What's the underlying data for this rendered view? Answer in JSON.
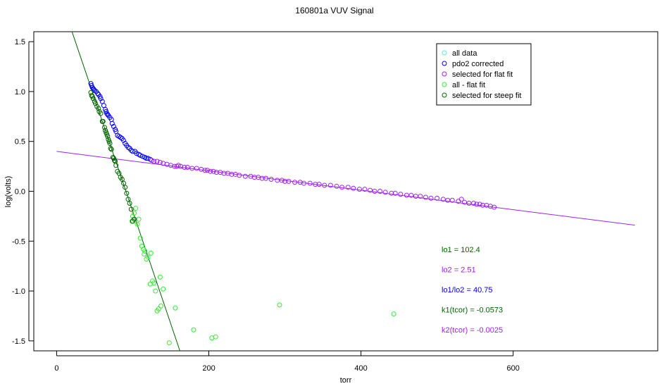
{
  "chart_data": {
    "type": "scatter",
    "title": "160801a   VUV Signal",
    "xlabel": "torr",
    "ylabel": "log(volts)",
    "xlim": [
      -30,
      790
    ],
    "ylim": [
      -1.6,
      1.6
    ],
    "xticks": [
      0,
      200,
      400,
      600
    ],
    "xtick_labels": [
      "0",
      "200",
      "400",
      "600"
    ],
    "yticks": [
      -1.5,
      -1.0,
      -0.5,
      0.0,
      0.5,
      1.0,
      1.5
    ],
    "ytick_labels": [
      "-1.5",
      "-1.0",
      "-0.5",
      "0.0",
      "0.5",
      "1.0",
      "1.5"
    ],
    "grid": false,
    "legend_position": "top-right",
    "series": [
      {
        "name": "all data",
        "color": "#66e0e0",
        "marker": "circle-open",
        "points": []
      },
      {
        "name": "pdo2 corrected",
        "color": "#0000ff",
        "marker": "circle-open",
        "points": [
          [
            45,
            1.08
          ],
          [
            46,
            1.06
          ],
          [
            47,
            1.04
          ],
          [
            48,
            1.03
          ],
          [
            49,
            1.02
          ],
          [
            50,
            1.01
          ],
          [
            52,
            1.0
          ],
          [
            54,
            0.98
          ],
          [
            55,
            0.97
          ],
          [
            57,
            0.95
          ],
          [
            58,
            0.93
          ],
          [
            60,
            0.9
          ],
          [
            62,
            0.86
          ],
          [
            64,
            0.82
          ],
          [
            65,
            0.8
          ],
          [
            66,
            0.78
          ],
          [
            67,
            0.77
          ],
          [
            68,
            0.76
          ],
          [
            70,
            0.74
          ],
          [
            72,
            0.72
          ],
          [
            73,
            0.68
          ],
          [
            75,
            0.65
          ],
          [
            77,
            0.62
          ],
          [
            78,
            0.6
          ],
          [
            80,
            0.56
          ],
          [
            82,
            0.55
          ],
          [
            84,
            0.54
          ],
          [
            86,
            0.53
          ],
          [
            88,
            0.51
          ],
          [
            90,
            0.48
          ],
          [
            92,
            0.46
          ],
          [
            94,
            0.44
          ],
          [
            96,
            0.43
          ],
          [
            98,
            0.41
          ],
          [
            100,
            0.4
          ],
          [
            103,
            0.4
          ],
          [
            105,
            0.38
          ],
          [
            108,
            0.37
          ],
          [
            110,
            0.36
          ],
          [
            113,
            0.35
          ],
          [
            116,
            0.34
          ],
          [
            118,
            0.33
          ],
          [
            120,
            0.33
          ],
          [
            123,
            0.32
          ]
        ]
      },
      {
        "name": "selected for flat fit",
        "color": "#a020f0",
        "marker": "circle-open",
        "points": [
          [
            125,
            0.31
          ],
          [
            128,
            0.3
          ],
          [
            132,
            0.3
          ],
          [
            136,
            0.29
          ],
          [
            140,
            0.28
          ],
          [
            145,
            0.27
          ],
          [
            150,
            0.26
          ],
          [
            155,
            0.25
          ],
          [
            158,
            0.25
          ],
          [
            160,
            0.26
          ],
          [
            163,
            0.25
          ],
          [
            168,
            0.24
          ],
          [
            172,
            0.24
          ],
          [
            178,
            0.23
          ],
          [
            184,
            0.23
          ],
          [
            190,
            0.22
          ],
          [
            195,
            0.21
          ],
          [
            198,
            0.21
          ],
          [
            202,
            0.2
          ],
          [
            206,
            0.2
          ],
          [
            210,
            0.19
          ],
          [
            215,
            0.19
          ],
          [
            220,
            0.18
          ],
          [
            225,
            0.18
          ],
          [
            230,
            0.17
          ],
          [
            235,
            0.17
          ],
          [
            240,
            0.16
          ],
          [
            248,
            0.15
          ],
          [
            255,
            0.15
          ],
          [
            260,
            0.14
          ],
          [
            265,
            0.14
          ],
          [
            270,
            0.13
          ],
          [
            275,
            0.13
          ],
          [
            282,
            0.12
          ],
          [
            290,
            0.11
          ],
          [
            296,
            0.11
          ],
          [
            300,
            0.1
          ],
          [
            305,
            0.1
          ],
          [
            313,
            0.09
          ],
          [
            320,
            0.09
          ],
          [
            325,
            0.08
          ],
          [
            333,
            0.08
          ],
          [
            340,
            0.07
          ],
          [
            345,
            0.07
          ],
          [
            352,
            0.06
          ],
          [
            360,
            0.06
          ],
          [
            368,
            0.05
          ],
          [
            375,
            0.04
          ],
          [
            383,
            0.04
          ],
          [
            390,
            0.03
          ],
          [
            398,
            0.02
          ],
          [
            405,
            0.02
          ],
          [
            412,
            0.01
          ],
          [
            418,
            0.0
          ],
          [
            425,
            0.0
          ],
          [
            432,
            -0.01
          ],
          [
            440,
            -0.02
          ],
          [
            445,
            -0.02
          ],
          [
            452,
            -0.03
          ],
          [
            460,
            -0.04
          ],
          [
            466,
            -0.04
          ],
          [
            472,
            -0.05
          ],
          [
            478,
            -0.05
          ],
          [
            485,
            -0.06
          ],
          [
            492,
            -0.07
          ],
          [
            500,
            -0.07
          ],
          [
            508,
            -0.08
          ],
          [
            514,
            -0.09
          ],
          [
            520,
            -0.09
          ],
          [
            528,
            -0.1
          ],
          [
            532,
            -0.08
          ],
          [
            536,
            -0.11
          ],
          [
            542,
            -0.12
          ],
          [
            548,
            -0.12
          ],
          [
            552,
            -0.13
          ],
          [
            556,
            -0.13
          ],
          [
            560,
            -0.14
          ],
          [
            565,
            -0.14
          ],
          [
            570,
            -0.15
          ],
          [
            575,
            -0.16
          ]
        ]
      },
      {
        "name": "all - flat fit",
        "color": "#33ee33",
        "marker": "circle-open",
        "points": [
          [
            99,
            -0.3
          ],
          [
            100,
            -0.25
          ],
          [
            102,
            -0.22
          ],
          [
            104,
            -0.17
          ],
          [
            106,
            -0.33
          ],
          [
            108,
            -0.28
          ],
          [
            110,
            -0.47
          ],
          [
            112,
            -0.55
          ],
          [
            114,
            -0.58
          ],
          [
            115,
            -0.63
          ],
          [
            116,
            -0.6
          ],
          [
            118,
            -0.68
          ],
          [
            120,
            -0.66
          ],
          [
            123,
            -0.93
          ],
          [
            124,
            -0.62
          ],
          [
            126,
            -0.9
          ],
          [
            128,
            -0.92
          ],
          [
            130,
            -1.0
          ],
          [
            132,
            -1.2
          ],
          [
            134,
            -1.18
          ],
          [
            136,
            -0.86
          ],
          [
            137,
            -1.15
          ],
          [
            140,
            -0.98
          ],
          [
            148,
            -1.52
          ],
          [
            156,
            -1.17
          ],
          [
            180,
            -1.39
          ],
          [
            204,
            -1.47
          ],
          [
            209,
            -1.46
          ],
          [
            293,
            -1.14
          ],
          [
            443,
            -1.23
          ]
        ]
      },
      {
        "name": "selected for steep fit",
        "color": "#006400",
        "marker": "circle-open",
        "points": [
          [
            45,
            0.99
          ],
          [
            46,
            0.96
          ],
          [
            47,
            0.95
          ],
          [
            48,
            0.93
          ],
          [
            50,
            0.9
          ],
          [
            51,
            0.88
          ],
          [
            53,
            0.85
          ],
          [
            55,
            0.83
          ],
          [
            56,
            0.8
          ],
          [
            58,
            0.78
          ],
          [
            60,
            0.7
          ],
          [
            61,
            0.7
          ],
          [
            63,
            0.64
          ],
          [
            64,
            0.61
          ],
          [
            65,
            0.59
          ],
          [
            66,
            0.57
          ],
          [
            67,
            0.55
          ],
          [
            68,
            0.52
          ],
          [
            69,
            0.5
          ],
          [
            70,
            0.48
          ],
          [
            71,
            0.43
          ],
          [
            72,
            0.42
          ],
          [
            74,
            0.34
          ],
          [
            75,
            0.33
          ],
          [
            76,
            0.31
          ],
          [
            77,
            0.3
          ],
          [
            78,
            0.26
          ],
          [
            80,
            0.2
          ],
          [
            82,
            0.18
          ],
          [
            84,
            0.14
          ],
          [
            86,
            0.12
          ],
          [
            88,
            0.08
          ],
          [
            90,
            0.04
          ],
          [
            92,
            -0.02
          ],
          [
            94,
            -0.08
          ],
          [
            96,
            -0.12
          ],
          [
            98,
            -0.18
          ],
          [
            100,
            -0.3
          ],
          [
            102,
            -0.28
          ]
        ]
      }
    ],
    "fit_lines": [
      {
        "name": "flat fit",
        "color": "#a020f0",
        "x": [
          0,
          760
        ],
        "y": [
          0.4,
          -0.34
        ]
      },
      {
        "name": "steep fit",
        "color": "#006400",
        "x": [
          18,
          162
        ],
        "y": [
          1.65,
          -1.6
        ]
      }
    ],
    "annotations": [
      {
        "text": "lo1 = 102.4",
        "color": "#006400"
      },
      {
        "text": "lo2 = 2.51",
        "color": "#a020f0"
      },
      {
        "text": "lo1/lo2 = 40.75",
        "color": "#0000ff"
      },
      {
        "text": "k1(tcor) = -0.0573",
        "color": "#006400"
      },
      {
        "text": "k2(tcor) = -0.0025",
        "color": "#a020f0"
      }
    ]
  }
}
